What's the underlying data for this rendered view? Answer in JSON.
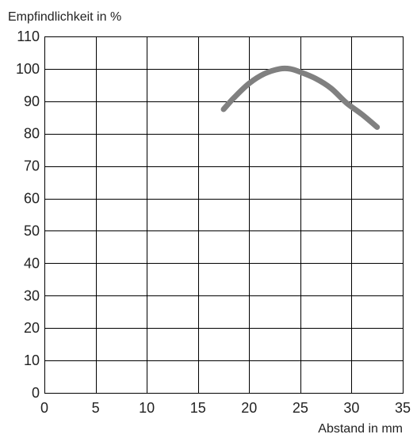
{
  "chart_data": {
    "type": "line",
    "title": "",
    "ylabel": "Empfindlichkeit in %",
    "xlabel": "Abstand in mm",
    "xlim": [
      0,
      35
    ],
    "ylim": [
      0,
      110
    ],
    "xticks": [
      0,
      5,
      10,
      15,
      20,
      25,
      30,
      35
    ],
    "yticks": [
      0,
      10,
      20,
      30,
      40,
      50,
      60,
      70,
      80,
      90,
      100,
      110
    ],
    "grid": true,
    "legend": "none",
    "series": [
      {
        "color": "#808080",
        "x": [
          17.5,
          18.5,
          20,
          21.5,
          23,
          24,
          25,
          26.5,
          28,
          29.5,
          31,
          32.5
        ],
        "y": [
          87.5,
          91,
          95.5,
          98.5,
          100,
          100,
          99,
          97,
          94,
          89.5,
          86,
          82
        ]
      }
    ]
  }
}
